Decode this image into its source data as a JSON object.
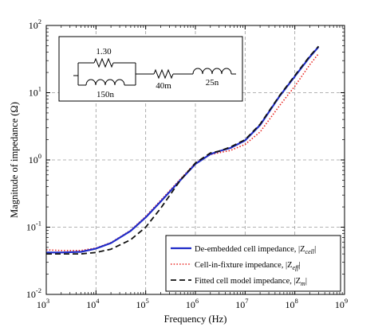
{
  "chart_data": {
    "type": "line",
    "title": "",
    "xlabel": "Frequency (Hz)",
    "ylabel": "Magnitude of impedance (Ω)",
    "xscale": "log",
    "yscale": "log",
    "xlim": [
      1000,
      1000000000
    ],
    "ylim": [
      0.01,
      100
    ],
    "grid": true,
    "legend_position": "bottom-right",
    "x_ticks": [
      {
        "value": 1000,
        "base": "10",
        "exp": "3"
      },
      {
        "value": 10000,
        "base": "10",
        "exp": "4"
      },
      {
        "value": 100000,
        "base": "10",
        "exp": "5"
      },
      {
        "value": 1000000,
        "base": "10",
        "exp": "6"
      },
      {
        "value": 10000000,
        "base": "10",
        "exp": "7"
      },
      {
        "value": 100000000,
        "base": "10",
        "exp": "8"
      },
      {
        "value": 1000000000,
        "base": "10",
        "exp": "9"
      }
    ],
    "y_ticks": [
      {
        "value": 0.01,
        "base": "10",
        "exp": "-2"
      },
      {
        "value": 0.1,
        "base": "10",
        "exp": "-1"
      },
      {
        "value": 1,
        "base": "10",
        "exp": "0"
      },
      {
        "value": 10,
        "base": "10",
        "exp": "1"
      },
      {
        "value": 100,
        "base": "10",
        "exp": "2"
      }
    ],
    "series": [
      {
        "name": "De-embedded cell impedance, |Z_cell|",
        "legend_main": "De-embedded cell impedance, |Z",
        "legend_sub": "cell",
        "legend_end": "|",
        "color": "#1f2bc8",
        "dash": "solid",
        "x": [
          1000,
          2000,
          5000,
          10000,
          20000,
          50000,
          100000,
          200000,
          500000,
          1000000,
          2000000,
          3000000,
          5000000,
          10000000,
          20000000,
          50000000,
          100000000,
          200000000,
          300000000
        ],
        "y": [
          0.042,
          0.042,
          0.043,
          0.048,
          0.058,
          0.088,
          0.14,
          0.24,
          0.5,
          0.87,
          1.22,
          1.35,
          1.5,
          1.95,
          3.3,
          9.0,
          17.5,
          34,
          48
        ]
      },
      {
        "name": "Cell-in-fixture impedance, |Z_eff|",
        "legend_main": "Cell-in-fixture impedance, |Z",
        "legend_sub": "eff",
        "legend_end": "|",
        "color": "#e8231e",
        "dash": "dotted",
        "x": [
          1000,
          2000,
          5000,
          10000,
          20000,
          50000,
          100000,
          200000,
          500000,
          1000000,
          2000000,
          3000000,
          5000000,
          10000000,
          20000000,
          50000000,
          100000000,
          200000000,
          300000000
        ],
        "y": [
          0.046,
          0.045,
          0.045,
          0.049,
          0.059,
          0.09,
          0.145,
          0.25,
          0.52,
          0.9,
          1.2,
          1.28,
          1.38,
          1.7,
          2.6,
          6.5,
          12.5,
          26,
          38
        ]
      },
      {
        "name": "Fitted cell model impedance, |Z_m|",
        "legend_main": "Fitted cell model impedance, |Z",
        "legend_sub": "m",
        "legend_end": "|",
        "color": "#111111",
        "dash": "dashed",
        "x": [
          1000,
          2000,
          5000,
          10000,
          20000,
          50000,
          100000,
          200000,
          500000,
          1000000,
          2000000,
          3000000,
          5000000,
          10000000,
          20000000,
          50000000,
          100000000,
          200000000,
          300000000
        ],
        "y": [
          0.04,
          0.04,
          0.04,
          0.042,
          0.047,
          0.065,
          0.1,
          0.19,
          0.5,
          0.9,
          1.27,
          1.35,
          1.55,
          2.0,
          3.4,
          9.2,
          18,
          35,
          49
        ]
      }
    ],
    "inset": {
      "resistor_parallel": "1.30",
      "inductor_parallel": "150n",
      "resistor_series": "40m",
      "inductor_series": "25n"
    }
  }
}
